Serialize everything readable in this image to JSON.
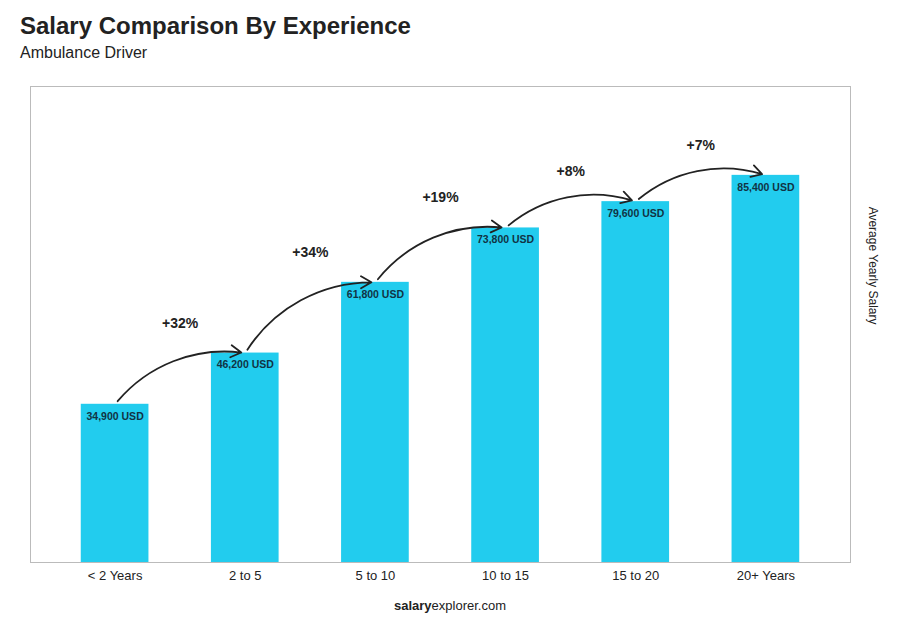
{
  "chart_data": {
    "type": "bar",
    "title": "Salary Comparison By Experience",
    "subtitle": "Ambulance Driver",
    "categories": [
      "< 2 Years",
      "2 to 5",
      "5 to 10",
      "10 to 15",
      "15 to 20",
      "20+ Years"
    ],
    "values": [
      34900,
      46200,
      61800,
      73800,
      79600,
      85400
    ],
    "value_labels": [
      "34,900 USD",
      "46,200 USD",
      "61,800 USD",
      "73,800 USD",
      "79,600 USD",
      "85,400 USD"
    ],
    "data_labels": true,
    "annotations": [
      "+32%",
      "+34%",
      "+19%",
      "+8%",
      "+7%"
    ],
    "color": "#22CCEE",
    "ylabel": "Average Yearly Salary",
    "caption": [
      "salary",
      "explorer.com"
    ],
    "ylim": [
      0,
      105000
    ],
    "tick_labels": "x",
    "grid": false
  }
}
